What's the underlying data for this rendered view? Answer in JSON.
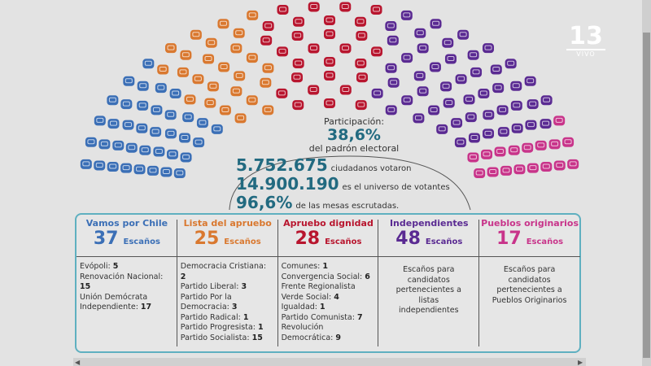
{
  "chart_data": {
    "type": "parliament",
    "categories": [
      "Vamos por Chile",
      "Lista del apruebo",
      "Apruebo dignidad",
      "Independientes",
      "Pueblos originarios"
    ],
    "values": [
      37,
      25,
      28,
      48,
      17
    ],
    "colors": [
      "#3b6fb6",
      "#d9782f",
      "#b8152e",
      "#5a2a92",
      "#c8348a"
    ]
  },
  "stats": {
    "participation_label": "Participación:",
    "participation_value": "38,6%",
    "participation_sub": "del padrón electoral",
    "voters_value": "5.752.675",
    "voters_label": "ciudadanos votaron",
    "universe_value": "14.900.190",
    "universe_label": "es el universo de votantes",
    "tables_value": "96,6%",
    "tables_label": "de las mesas escrutadas."
  },
  "seats_word": "Escaños",
  "coalitions": [
    {
      "name": "Vamos por Chile",
      "seats": "37",
      "parties": [
        [
          "Evópoli: ",
          "5"
        ],
        [
          "Renovación Nacional: ",
          "15"
        ],
        [
          "Unión Demócrata Independiente: ",
          "17"
        ]
      ]
    },
    {
      "name": "Lista del apruebo",
      "seats": "25",
      "parties": [
        [
          "Democracia Cristiana: ",
          "2"
        ],
        [
          "Partido Liberal: ",
          "3"
        ],
        [
          "Partido Por la Democracia: ",
          "3"
        ],
        [
          "Partido Radical: ",
          "1"
        ],
        [
          "Partido Progresista: ",
          "1"
        ],
        [
          "Partido Socialista: ",
          "15"
        ]
      ]
    },
    {
      "name": "Apruebo dignidad",
      "seats": "28",
      "parties": [
        [
          "Comunes: ",
          "1"
        ],
        [
          "Convergencia Social: ",
          "6"
        ],
        [
          "Frente Regionalista Verde Social: ",
          "4"
        ],
        [
          "Igualdad: ",
          "1"
        ],
        [
          "Partido Comunista: ",
          "7"
        ],
        [
          "Revolución Democrática: ",
          "9"
        ]
      ]
    },
    {
      "name": "Independientes",
      "seats": "48",
      "note": "Escaños para candidatos pertenecientes a listas independientes"
    },
    {
      "name": "Pueblos originarios",
      "seats": "17",
      "note": "Escaños para candidatos pertenecientes a Pueblos Originarios"
    }
  ],
  "logo": {
    "number": "13",
    "live": "VIVO"
  }
}
